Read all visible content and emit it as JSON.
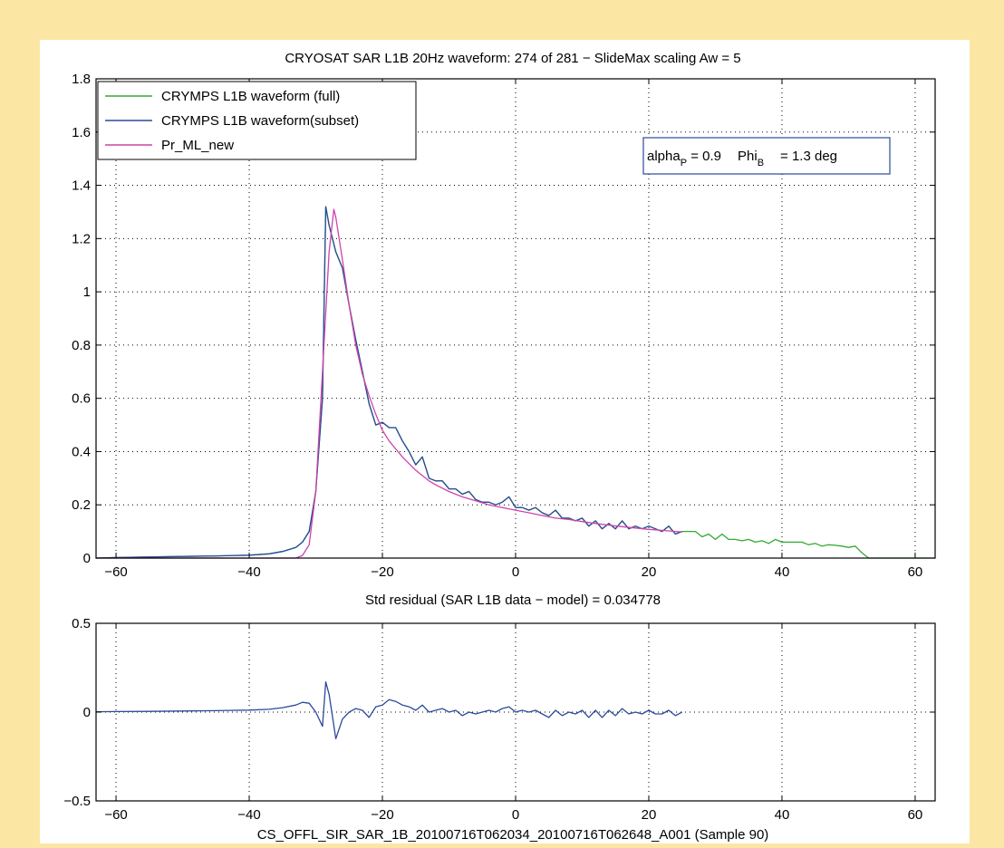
{
  "chart_data": [
    {
      "type": "line",
      "title": "CRYOSAT SAR L1B 20Hz waveform: 274 of 281 − SlideMax scaling Aw = 5",
      "xlabel": "",
      "ylabel": "",
      "xlim": [
        -63,
        63
      ],
      "ylim": [
        0,
        1.8
      ],
      "xticks": [
        -60,
        -40,
        -20,
        0,
        20,
        40,
        60
      ],
      "xtick_labels": [
        "−60",
        "−40",
        "−20",
        "0",
        "20",
        "40",
        "60"
      ],
      "yticks": [
        0,
        0.2,
        0.4,
        0.6,
        0.8,
        1,
        1.2,
        1.4,
        1.6,
        1.8
      ],
      "ytick_labels": [
        "0",
        "0.2",
        "0.4",
        "0.6",
        "0.8",
        "1",
        "1.2",
        "1.4",
        "1.6",
        "1.8"
      ],
      "grid": true,
      "legend_position": "top-left",
      "annotation": {
        "alpha_label": "alpha",
        "alpha_sub": "P",
        "alpha_value": " = 0.9",
        "phi_label": "Phi",
        "phi_sub": "B",
        "phi_value": "= 1.3 deg"
      },
      "series": [
        {
          "name": "CRYMPS L1B waveform (full)",
          "color": "#33AA33",
          "x": [
            -63,
            -60,
            -55,
            -50,
            -45,
            -40,
            -37,
            -35,
            -33,
            -32,
            -31,
            -30,
            -29,
            -28.5,
            -28,
            -27,
            -26,
            -25,
            -24,
            -23,
            -22,
            -21,
            -20,
            -19,
            -18,
            -17,
            -16,
            -15,
            -14,
            -13,
            -12,
            -11,
            -10,
            -9,
            -8,
            -7,
            -6,
            -5,
            -4,
            -3,
            -2,
            -1,
            0,
            1,
            2,
            3,
            4,
            5,
            6,
            7,
            8,
            9,
            10,
            11,
            12,
            13,
            14,
            15,
            16,
            17,
            18,
            19,
            20,
            21,
            22,
            23,
            24,
            25,
            26,
            27,
            28,
            29,
            30,
            31,
            32,
            33,
            34,
            35,
            36,
            37,
            38,
            39,
            40,
            41,
            42,
            43,
            44,
            45,
            46,
            47,
            48,
            49,
            50,
            51,
            52,
            53,
            54,
            55,
            56,
            57,
            58,
            59,
            60,
            61,
            62,
            63
          ],
          "values": [
            0.0,
            0.002,
            0.004,
            0.006,
            0.008,
            0.011,
            0.016,
            0.025,
            0.04,
            0.06,
            0.1,
            0.25,
            0.6,
            1.32,
            1.25,
            1.15,
            1.09,
            0.95,
            0.82,
            0.7,
            0.58,
            0.5,
            0.51,
            0.49,
            0.49,
            0.44,
            0.4,
            0.35,
            0.38,
            0.3,
            0.29,
            0.29,
            0.26,
            0.26,
            0.24,
            0.25,
            0.22,
            0.21,
            0.21,
            0.2,
            0.21,
            0.23,
            0.19,
            0.19,
            0.18,
            0.19,
            0.17,
            0.16,
            0.18,
            0.15,
            0.15,
            0.14,
            0.15,
            0.12,
            0.14,
            0.11,
            0.13,
            0.11,
            0.14,
            0.11,
            0.12,
            0.11,
            0.12,
            0.11,
            0.1,
            0.12,
            0.09,
            0.1,
            0.1,
            0.1,
            0.08,
            0.09,
            0.07,
            0.09,
            0.07,
            0.07,
            0.065,
            0.07,
            0.06,
            0.065,
            0.055,
            0.07,
            0.06,
            0.06,
            0.06,
            0.06,
            0.05,
            0.055,
            0.045,
            0.05,
            0.048,
            0.045,
            0.04,
            0.045,
            0.02,
            0.0,
            0.0,
            0.0,
            0.0,
            0.0,
            0.0,
            0.0,
            0.0,
            0.0,
            0.0,
            0.0
          ]
        },
        {
          "name": "CRYMPS L1B waveform(subset)",
          "color": "#2B4A9A",
          "x": [
            -63,
            -60,
            -55,
            -50,
            -45,
            -40,
            -37,
            -35,
            -33,
            -32,
            -31,
            -30,
            -29,
            -28.5,
            -28,
            -27,
            -26,
            -25,
            -24,
            -23,
            -22,
            -21,
            -20,
            -19,
            -18,
            -17,
            -16,
            -15,
            -14,
            -13,
            -12,
            -11,
            -10,
            -9,
            -8,
            -7,
            -6,
            -5,
            -4,
            -3,
            -2,
            -1,
            0,
            1,
            2,
            3,
            4,
            5,
            6,
            7,
            8,
            9,
            10,
            11,
            12,
            13,
            14,
            15,
            16,
            17,
            18,
            19,
            20,
            21,
            22,
            23,
            24,
            25
          ],
          "values": [
            0.0,
            0.002,
            0.004,
            0.006,
            0.008,
            0.011,
            0.016,
            0.025,
            0.04,
            0.06,
            0.1,
            0.25,
            0.6,
            1.32,
            1.25,
            1.15,
            1.09,
            0.95,
            0.82,
            0.7,
            0.58,
            0.5,
            0.51,
            0.49,
            0.49,
            0.44,
            0.4,
            0.35,
            0.38,
            0.3,
            0.29,
            0.29,
            0.26,
            0.26,
            0.24,
            0.25,
            0.22,
            0.21,
            0.21,
            0.2,
            0.21,
            0.23,
            0.19,
            0.19,
            0.18,
            0.19,
            0.17,
            0.16,
            0.18,
            0.15,
            0.15,
            0.14,
            0.15,
            0.12,
            0.14,
            0.11,
            0.13,
            0.11,
            0.14,
            0.11,
            0.12,
            0.11,
            0.12,
            0.11,
            0.1,
            0.12,
            0.09,
            0.1
          ]
        },
        {
          "name": "Pr_ML_new",
          "color": "#CC44AA",
          "x": [
            -63,
            -40,
            -33,
            -32,
            -31,
            -30,
            -29,
            -28,
            -27.3,
            -27,
            -26,
            -25,
            -24,
            -23,
            -22,
            -21,
            -20,
            -19,
            -18,
            -17,
            -16,
            -15,
            -14,
            -13,
            -12,
            -10,
            -8,
            -6,
            -4,
            -2,
            0,
            2,
            4,
            6,
            8,
            10,
            12,
            14,
            16,
            18,
            20,
            22,
            24,
            25
          ],
          "values": [
            0.0,
            0.0,
            0.0,
            0.01,
            0.05,
            0.25,
            0.7,
            1.15,
            1.31,
            1.28,
            1.12,
            0.95,
            0.8,
            0.69,
            0.61,
            0.54,
            0.48,
            0.44,
            0.41,
            0.38,
            0.355,
            0.33,
            0.31,
            0.29,
            0.275,
            0.25,
            0.23,
            0.215,
            0.2,
            0.19,
            0.18,
            0.17,
            0.16,
            0.15,
            0.145,
            0.137,
            0.13,
            0.124,
            0.118,
            0.113,
            0.108,
            0.104,
            0.1,
            0.098
          ]
        }
      ]
    },
    {
      "type": "line",
      "title": "Std residual (SAR L1B data − model) = 0.034778",
      "xlabel": "CS_OFFL_SIR_SAR_1B_20100716T062034_20100716T062648_A001 (Sample 90)",
      "ylabel": "",
      "xlim": [
        -63,
        63
      ],
      "ylim": [
        -0.5,
        0.5
      ],
      "xticks": [
        -60,
        -40,
        -20,
        0,
        20,
        40,
        60
      ],
      "xtick_labels": [
        "−60",
        "−40",
        "−20",
        "0",
        "20",
        "40",
        "60"
      ],
      "yticks": [
        -0.5,
        0,
        0.5
      ],
      "ytick_labels": [
        "−0.5",
        "0",
        "0.5"
      ],
      "grid": true,
      "series": [
        {
          "name": "",
          "color": "#2B4A9A",
          "x": [
            -63,
            -60,
            -55,
            -50,
            -45,
            -40,
            -37,
            -35,
            -33,
            -32,
            -31,
            -30,
            -29,
            -28.5,
            -28,
            -27,
            -26,
            -25,
            -24,
            -23,
            -22,
            -21,
            -20,
            -19,
            -18,
            -17,
            -16,
            -15,
            -14,
            -13,
            -12,
            -11,
            -10,
            -9,
            -8,
            -7,
            -6,
            -5,
            -4,
            -3,
            -2,
            -1,
            0,
            1,
            2,
            3,
            4,
            5,
            6,
            7,
            8,
            9,
            10,
            11,
            12,
            13,
            14,
            15,
            16,
            17,
            18,
            19,
            20,
            21,
            22,
            23,
            24,
            25
          ],
          "values": [
            0.002,
            0.003,
            0.004,
            0.006,
            0.008,
            0.011,
            0.016,
            0.025,
            0.04,
            0.055,
            0.05,
            0.0,
            -0.08,
            0.17,
            0.1,
            -0.15,
            -0.04,
            0.0,
            0.02,
            0.01,
            -0.03,
            0.03,
            0.04,
            0.07,
            0.06,
            0.04,
            0.03,
            0.01,
            0.04,
            0.0,
            0.01,
            0.02,
            0.0,
            0.01,
            -0.02,
            0.0,
            -0.01,
            0.0,
            0.01,
            0.0,
            0.02,
            0.03,
            0.0,
            0.01,
            0.0,
            0.01,
            -0.01,
            -0.03,
            0.01,
            -0.02,
            0.0,
            -0.01,
            0.01,
            -0.03,
            0.01,
            -0.03,
            0.01,
            -0.02,
            0.02,
            -0.01,
            0.0,
            -0.01,
            0.01,
            -0.01,
            -0.01,
            0.01,
            -0.02,
            0.0
          ]
        }
      ]
    }
  ]
}
